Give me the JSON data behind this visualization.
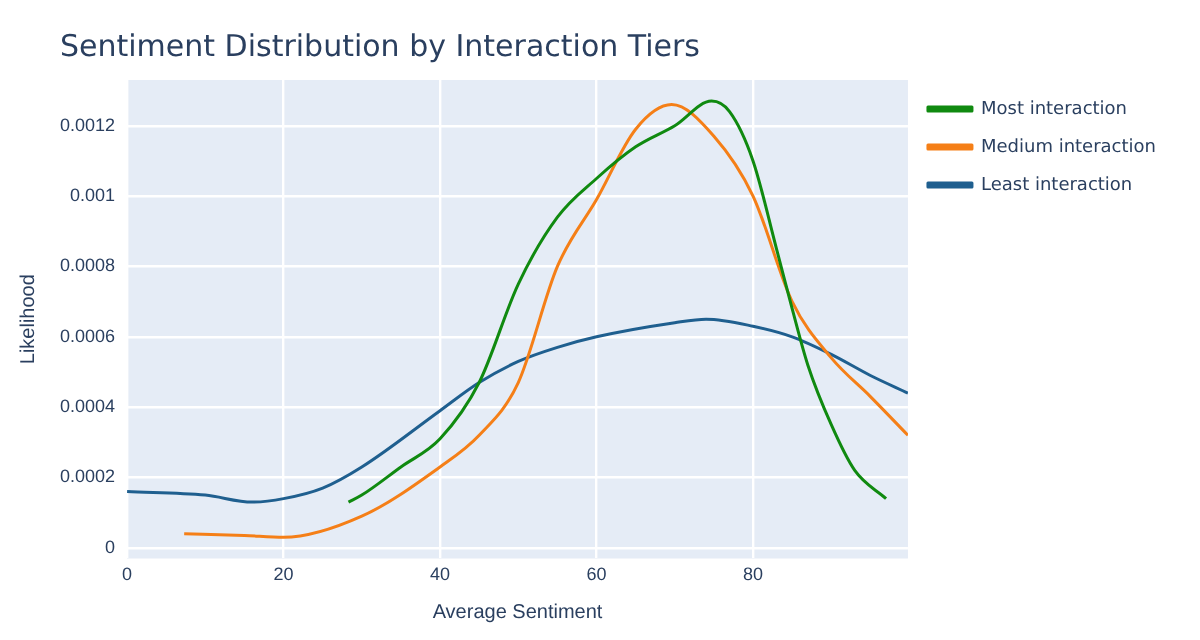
{
  "chart_data": {
    "type": "line",
    "title": "Sentiment Distribution by Interaction Tiers",
    "xlabel": "Average Sentiment",
    "ylabel": "Likelihood",
    "xlim": [
      0,
      99.8
    ],
    "xticks": [
      0,
      20,
      40,
      60,
      80
    ],
    "ylim": [
      -3e-05,
      0.00133
    ],
    "yticks": [
      0,
      0.0002,
      0.0004,
      0.0006,
      0.0008,
      0.001,
      0.0012
    ],
    "grid": true,
    "legend": "top right",
    "marker": "none",
    "series": [
      {
        "name": "Most interaction",
        "color": "#108a10",
        "x": [
          28.3,
          30,
          35,
          40,
          45,
          50,
          55,
          60,
          65,
          70,
          74.7,
          77,
          80,
          83,
          85,
          87,
          90,
          93,
          97
        ],
        "values": [
          0.00013,
          0.00015,
          0.00023,
          0.00031,
          0.00047,
          0.00075,
          0.00094,
          0.00105,
          0.00114,
          0.0012,
          0.00127,
          0.00124,
          0.0011,
          0.00085,
          0.00068,
          0.00052,
          0.00035,
          0.00022,
          0.00014
        ]
      },
      {
        "name": "Medium interaction",
        "color": "#f57f17",
        "x": [
          7.3,
          15,
          20,
          30,
          40,
          45,
          50,
          55,
          60,
          65,
          69.6,
          75,
          80,
          85,
          90,
          95,
          99.8
        ],
        "values": [
          4e-05,
          3.5e-05,
          3e-05,
          9e-05,
          0.00023,
          0.00032,
          0.00047,
          0.0008,
          0.00099,
          0.00119,
          0.00126,
          0.00117,
          0.001,
          0.0007,
          0.00054,
          0.00043,
          0.00032
        ]
      },
      {
        "name": "Least interaction",
        "color": "#1f5f8f",
        "x": [
          0,
          10,
          16,
          20,
          25,
          30,
          40,
          45,
          50,
          55,
          60,
          70,
          74,
          80,
          85,
          90,
          95,
          99.8
        ],
        "values": [
          0.00016,
          0.00015,
          0.00013,
          0.00014,
          0.00017,
          0.00023,
          0.00039,
          0.00047,
          0.00053,
          0.00057,
          0.0006,
          0.00064,
          0.00065,
          0.00063,
          0.0006,
          0.00055,
          0.00049,
          0.00044
        ]
      }
    ]
  }
}
